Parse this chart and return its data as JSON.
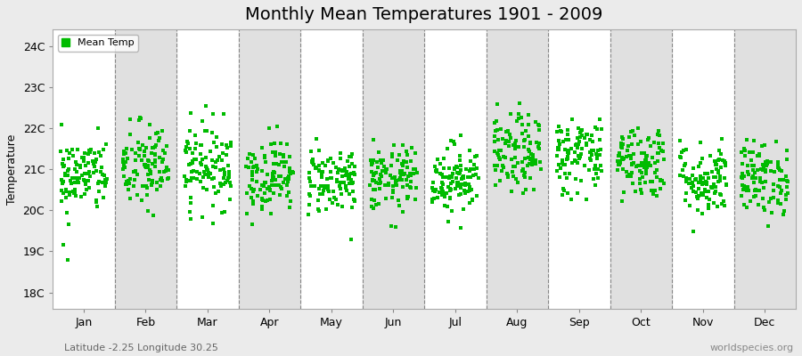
{
  "title": "Monthly Mean Temperatures 1901 - 2009",
  "ylabel": "Temperature",
  "xlabel_bottom": "Latitude -2.25 Longitude 30.25",
  "watermark": "worldspecies.org",
  "ytick_labels": [
    "18C",
    "19C",
    "20C",
    "21C",
    "22C",
    "23C",
    "24C"
  ],
  "ytick_values": [
    18,
    19,
    20,
    21,
    22,
    23,
    24
  ],
  "ylim": [
    17.6,
    24.4
  ],
  "months": [
    "Jan",
    "Feb",
    "Mar",
    "Apr",
    "May",
    "Jun",
    "Jul",
    "Aug",
    "Sep",
    "Oct",
    "Nov",
    "Dec"
  ],
  "month_means": [
    20.85,
    21.05,
    21.1,
    20.85,
    20.75,
    20.75,
    20.78,
    21.35,
    21.35,
    21.2,
    20.75,
    20.78
  ],
  "month_stds": [
    0.45,
    0.55,
    0.52,
    0.45,
    0.42,
    0.4,
    0.42,
    0.48,
    0.48,
    0.45,
    0.45,
    0.45
  ],
  "n_years": 109,
  "dot_color": "#00BB00",
  "dot_size": 5,
  "legend_label": "Mean Temp",
  "background_color": "#ebebeb",
  "plot_bg_color": "#ffffff",
  "stripe_color": "#e0e0e0",
  "dashed_line_color": "#888888",
  "title_fontsize": 14,
  "axis_fontsize": 9,
  "tick_fontsize": 9
}
